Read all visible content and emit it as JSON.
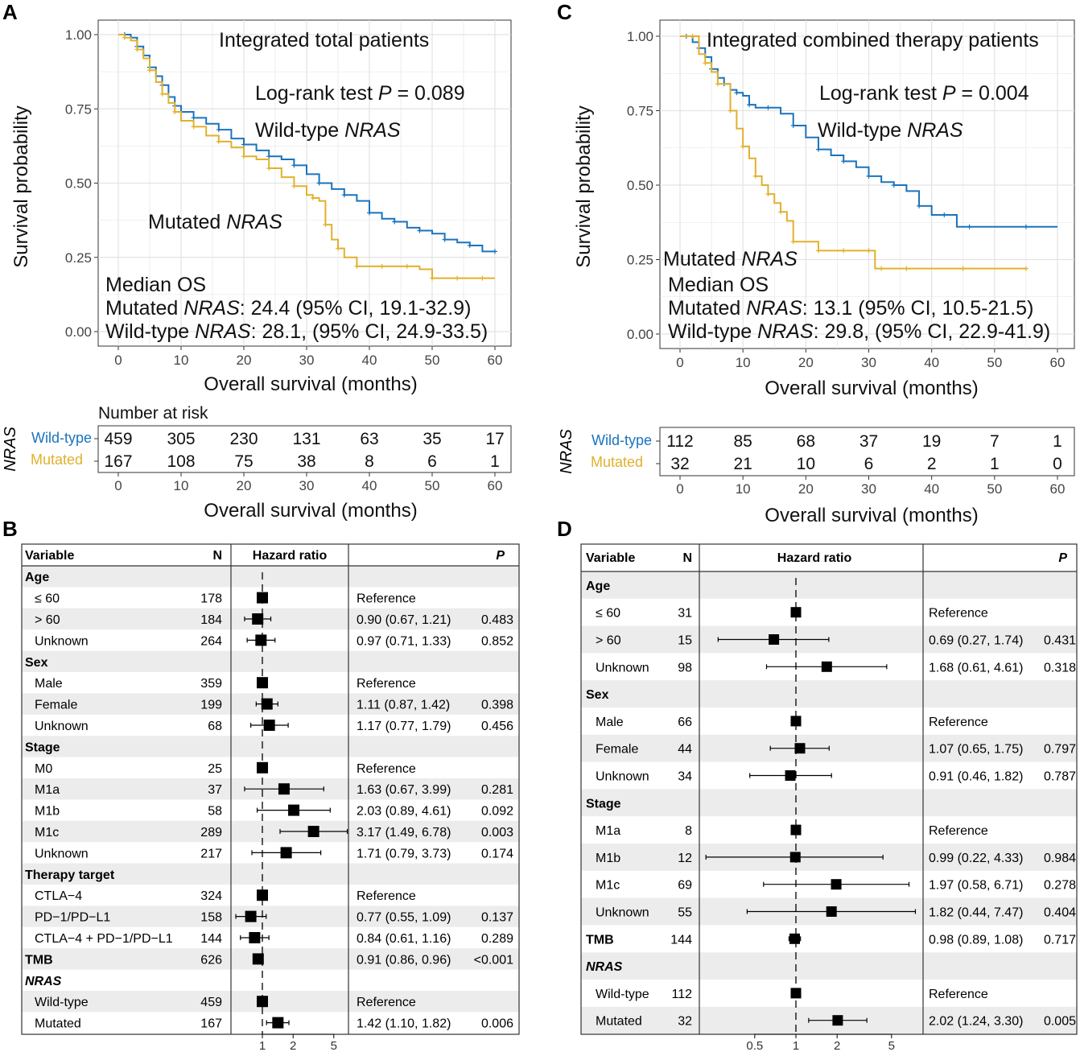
{
  "colors": {
    "wild": "#1a73bd",
    "mutated": "#e1b12c",
    "grid": "#e3e3e3",
    "band": "#ececec"
  },
  "panels": {
    "A": "A",
    "B": "B",
    "C": "C",
    "D": "D"
  },
  "A": {
    "title": "Integrated total patients",
    "logrank_prefix": "Log-rank test ",
    "logrank_p": "P",
    "logrank_value": " = 0.089",
    "wild_label_prefix": "Wild-type ",
    "gene": "NRAS",
    "mut_label_prefix": "Mutated ",
    "median_title": "Median OS",
    "median_mut_suffix": ": 24.4 (95% CI, 19.1-32.9)",
    "median_wild_suffix": ": 28.1, (95% CI, 24.9-33.5)",
    "ylabel": "Survival probability",
    "xlabel": "Overall survival (months)",
    "risk_title": "Number at risk",
    "risk_side": "NRAS",
    "risk_wild_label": "Wild-type",
    "risk_mut_label": "Mutated",
    "risk_wild": [
      "459",
      "305",
      "230",
      "131",
      "63",
      "35",
      "17"
    ],
    "risk_mut": [
      "167",
      "108",
      "75",
      "38",
      "8",
      "6",
      "1"
    ],
    "xticks": [
      "0",
      "10",
      "20",
      "30",
      "40",
      "50",
      "60"
    ],
    "yticks": [
      "0.00",
      "0.25",
      "0.50",
      "0.75",
      "1.00"
    ]
  },
  "C": {
    "title": "Integrated combined therapy patients",
    "logrank_prefix": "Log-rank test ",
    "logrank_p": "P",
    "logrank_value": " = 0.004",
    "wild_label_prefix": "Wild-type ",
    "gene": "NRAS",
    "mut_label_prefix": "Mutated ",
    "median_title": "Median OS",
    "median_mut_suffix": ": 13.1 (95% CI, 10.5-21.5)",
    "median_wild_suffix": ": 29.8, (95% CI, 22.9-41.9)",
    "ylabel": "Survival probability",
    "xlabel": "Overall survival (months)",
    "risk_side": "NRAS",
    "risk_wild_label": "Wild-type",
    "risk_mut_label": "Mutated",
    "risk_wild": [
      "112",
      "85",
      "68",
      "37",
      "19",
      "7",
      "1"
    ],
    "risk_mut": [
      "32",
      "21",
      "10",
      "6",
      "2",
      "1",
      "0"
    ],
    "xticks": [
      "0",
      "10",
      "20",
      "30",
      "40",
      "50",
      "60"
    ],
    "yticks": [
      "0.00",
      "0.25",
      "0.50",
      "0.75",
      "1.00"
    ]
  },
  "B": {
    "headers": {
      "variable": "Variable",
      "n": "N",
      "hr": "Hazard ratio",
      "p": "P"
    },
    "xticks": [
      "1",
      "2",
      "5"
    ]
  },
  "D": {
    "headers": {
      "variable": "Variable",
      "n": "N",
      "hr": "Hazard ratio",
      "p": "P"
    },
    "xticks": [
      "0.5",
      "1",
      "2",
      "5"
    ]
  },
  "chart_data": [
    {
      "panel": "A",
      "type": "line",
      "title": "Integrated total patients",
      "xlabel": "Overall survival (months)",
      "ylabel": "Survival probability",
      "xlim": [
        0,
        60
      ],
      "ylim": [
        0,
        1
      ],
      "series": [
        {
          "name": "Wild-type NRAS",
          "color": "#1a73bd",
          "x": [
            0,
            1,
            2,
            3,
            4,
            5,
            6,
            7,
            8,
            9,
            10,
            12,
            14,
            16,
            18,
            20,
            22,
            24,
            26,
            28,
            30,
            32,
            34,
            36,
            38,
            40,
            42,
            44,
            46,
            48,
            50,
            52,
            54,
            56,
            58,
            60
          ],
          "y": [
            1.0,
            1.0,
            0.99,
            0.96,
            0.93,
            0.89,
            0.86,
            0.83,
            0.79,
            0.76,
            0.74,
            0.72,
            0.7,
            0.68,
            0.65,
            0.63,
            0.61,
            0.59,
            0.58,
            0.56,
            0.53,
            0.5,
            0.48,
            0.46,
            0.44,
            0.4,
            0.38,
            0.37,
            0.35,
            0.34,
            0.33,
            0.31,
            0.3,
            0.29,
            0.27,
            0.27
          ]
        },
        {
          "name": "Mutated NRAS",
          "color": "#e1b12c",
          "x": [
            0,
            1,
            2,
            3,
            4,
            5,
            6,
            7,
            8,
            9,
            10,
            12,
            14,
            16,
            18,
            20,
            22,
            24,
            26,
            28,
            30,
            31,
            32,
            33,
            34,
            35,
            36,
            38,
            40,
            42,
            44,
            46,
            48,
            50,
            52,
            54,
            56,
            58,
            60
          ],
          "y": [
            1.0,
            0.99,
            0.98,
            0.95,
            0.92,
            0.88,
            0.84,
            0.8,
            0.77,
            0.74,
            0.71,
            0.69,
            0.66,
            0.64,
            0.62,
            0.59,
            0.58,
            0.55,
            0.52,
            0.49,
            0.46,
            0.45,
            0.44,
            0.36,
            0.31,
            0.28,
            0.25,
            0.22,
            0.22,
            0.22,
            0.22,
            0.22,
            0.21,
            0.18,
            0.18,
            0.18,
            0.18,
            0.18,
            0.18
          ]
        }
      ]
    },
    {
      "panel": "C",
      "type": "line",
      "title": "Integrated combined therapy patients",
      "xlabel": "Overall survival (months)",
      "ylabel": "Survival probability",
      "xlim": [
        0,
        60
      ],
      "ylim": [
        0,
        1
      ],
      "series": [
        {
          "name": "Wild-type NRAS",
          "color": "#1a73bd",
          "x": [
            0,
            1,
            2,
            3,
            4,
            5,
            6,
            7,
            8,
            9,
            10,
            11,
            12,
            14,
            16,
            18,
            20,
            22,
            24,
            26,
            28,
            30,
            32,
            34,
            36,
            38,
            40,
            42,
            44,
            46,
            50,
            55,
            60
          ],
          "y": [
            1.0,
            1.0,
            0.98,
            0.96,
            0.93,
            0.89,
            0.86,
            0.84,
            0.82,
            0.81,
            0.8,
            0.77,
            0.76,
            0.76,
            0.74,
            0.7,
            0.66,
            0.62,
            0.6,
            0.58,
            0.56,
            0.53,
            0.51,
            0.5,
            0.48,
            0.43,
            0.4,
            0.4,
            0.36,
            0.36,
            0.36,
            0.36,
            0.36
          ]
        },
        {
          "name": "Mutated NRAS",
          "color": "#e1b12c",
          "x": [
            0,
            2,
            3,
            4,
            5,
            6,
            7,
            8,
            9,
            10,
            11,
            12,
            13,
            14,
            15,
            16,
            17,
            18,
            20,
            22,
            24,
            26,
            28,
            30,
            31,
            32,
            34,
            36,
            40,
            45,
            50,
            55
          ],
          "y": [
            1.0,
            1.0,
            0.94,
            0.91,
            0.88,
            0.84,
            0.84,
            0.75,
            0.69,
            0.63,
            0.59,
            0.53,
            0.5,
            0.47,
            0.44,
            0.41,
            0.38,
            0.31,
            0.31,
            0.28,
            0.28,
            0.28,
            0.28,
            0.28,
            0.22,
            0.22,
            0.22,
            0.22,
            0.22,
            0.22,
            0.22,
            0.22
          ]
        }
      ]
    },
    {
      "panel": "B",
      "type": "forest",
      "scale": "log",
      "reference": 1,
      "rows": [
        {
          "kind": "group",
          "label": "Age"
        },
        {
          "label": "≤ 60",
          "n": "178",
          "hr": 1.0,
          "lo": null,
          "hi": null,
          "text": "Reference",
          "p": ""
        },
        {
          "label": "> 60",
          "n": "184",
          "hr": 0.9,
          "lo": 0.67,
          "hi": 1.21,
          "text": "0.90 (0.67, 1.21)",
          "p": "0.483"
        },
        {
          "label": "Unknown",
          "n": "264",
          "hr": 0.97,
          "lo": 0.71,
          "hi": 1.33,
          "text": "0.97 (0.71, 1.33)",
          "p": "0.852"
        },
        {
          "kind": "group",
          "label": "Sex"
        },
        {
          "label": "Male",
          "n": "359",
          "hr": 1.0,
          "lo": null,
          "hi": null,
          "text": "Reference",
          "p": ""
        },
        {
          "label": "Female",
          "n": "199",
          "hr": 1.11,
          "lo": 0.87,
          "hi": 1.42,
          "text": "1.11 (0.87, 1.42)",
          "p": "0.398"
        },
        {
          "label": "Unknown",
          "n": "68",
          "hr": 1.17,
          "lo": 0.77,
          "hi": 1.79,
          "text": "1.17 (0.77, 1.79)",
          "p": "0.456"
        },
        {
          "kind": "group",
          "label": "Stage"
        },
        {
          "label": "M0",
          "n": "25",
          "hr": 1.0,
          "lo": null,
          "hi": null,
          "text": "Reference",
          "p": ""
        },
        {
          "label": "M1a",
          "n": "37",
          "hr": 1.63,
          "lo": 0.67,
          "hi": 3.99,
          "text": "1.63 (0.67, 3.99)",
          "p": "0.281"
        },
        {
          "label": "M1b",
          "n": "58",
          "hr": 2.03,
          "lo": 0.89,
          "hi": 4.61,
          "text": "2.03 (0.89, 4.61)",
          "p": "0.092"
        },
        {
          "label": "M1c",
          "n": "289",
          "hr": 3.17,
          "lo": 1.49,
          "hi": 6.78,
          "text": "3.17 (1.49, 6.78)",
          "p": "0.003"
        },
        {
          "label": "Unknown",
          "n": "217",
          "hr": 1.71,
          "lo": 0.79,
          "hi": 3.73,
          "text": "1.71 (0.79, 3.73)",
          "p": "0.174"
        },
        {
          "kind": "group",
          "label": "Therapy target"
        },
        {
          "label": "CTLA−4",
          "n": "324",
          "hr": 1.0,
          "lo": null,
          "hi": null,
          "text": "Reference",
          "p": ""
        },
        {
          "label": "PD−1/PD−L1",
          "n": "158",
          "hr": 0.77,
          "lo": 0.55,
          "hi": 1.09,
          "text": "0.77 (0.55, 1.09)",
          "p": "0.137"
        },
        {
          "label": "CTLA−4 + PD−1/PD−L1",
          "n": "144",
          "hr": 0.84,
          "lo": 0.61,
          "hi": 1.16,
          "text": "0.84 (0.61, 1.16)",
          "p": "0.289"
        },
        {
          "kind": "group",
          "label": "TMB",
          "n": "626",
          "hr": 0.91,
          "lo": 0.86,
          "hi": 0.96,
          "text": "0.91 (0.86, 0.96)",
          "p": "<0.001"
        },
        {
          "kind": "group",
          "label": "NRAS",
          "italic": true
        },
        {
          "label": "Wild-type",
          "n": "459",
          "hr": 1.0,
          "lo": null,
          "hi": null,
          "text": "Reference",
          "p": ""
        },
        {
          "label": "Mutated",
          "n": "167",
          "hr": 1.42,
          "lo": 1.1,
          "hi": 1.82,
          "text": "1.42 (1.10, 1.82)",
          "p": "0.006"
        }
      ]
    },
    {
      "panel": "D",
      "type": "forest",
      "scale": "log",
      "reference": 1,
      "rows": [
        {
          "kind": "group",
          "label": "Age"
        },
        {
          "label": "≤ 60",
          "n": "31",
          "hr": 1.0,
          "lo": null,
          "hi": null,
          "text": "Reference",
          "p": ""
        },
        {
          "label": "> 60",
          "n": "15",
          "hr": 0.69,
          "lo": 0.27,
          "hi": 1.74,
          "text": "0.69 (0.27, 1.74)",
          "p": "0.431"
        },
        {
          "label": "Unknown",
          "n": "98",
          "hr": 1.68,
          "lo": 0.61,
          "hi": 4.61,
          "text": "1.68 (0.61, 4.61)",
          "p": "0.318"
        },
        {
          "kind": "group",
          "label": "Sex"
        },
        {
          "label": "Male",
          "n": "66",
          "hr": 1.0,
          "lo": null,
          "hi": null,
          "text": "Reference",
          "p": ""
        },
        {
          "label": "Female",
          "n": "44",
          "hr": 1.07,
          "lo": 0.65,
          "hi": 1.75,
          "text": "1.07 (0.65, 1.75)",
          "p": "0.797"
        },
        {
          "label": "Unknown",
          "n": "34",
          "hr": 0.91,
          "lo": 0.46,
          "hi": 1.82,
          "text": "0.91 (0.46, 1.82)",
          "p": "0.787"
        },
        {
          "kind": "group",
          "label": "Stage"
        },
        {
          "label": "M1a",
          "n": "8",
          "hr": 1.0,
          "lo": null,
          "hi": null,
          "text": "Reference",
          "p": ""
        },
        {
          "label": "M1b",
          "n": "12",
          "hr": 0.99,
          "lo": 0.22,
          "hi": 4.33,
          "text": "0.99 (0.22, 4.33)",
          "p": "0.984"
        },
        {
          "label": "M1c",
          "n": "69",
          "hr": 1.97,
          "lo": 0.58,
          "hi": 6.71,
          "text": "1.97 (0.58, 6.71)",
          "p": "0.278"
        },
        {
          "label": "Unknown",
          "n": "55",
          "hr": 1.82,
          "lo": 0.44,
          "hi": 7.47,
          "text": "1.82 (0.44, 7.47)",
          "p": "0.404"
        },
        {
          "kind": "group",
          "label": "TMB",
          "n": "144",
          "hr": 0.98,
          "lo": 0.89,
          "hi": 1.08,
          "text": "0.98 (0.89, 1.08)",
          "p": "0.717"
        },
        {
          "kind": "group",
          "label": "NRAS",
          "italic": true
        },
        {
          "label": "Wild-type",
          "n": "112",
          "hr": 1.0,
          "lo": null,
          "hi": null,
          "text": "Reference",
          "p": ""
        },
        {
          "label": "Mutated",
          "n": "32",
          "hr": 2.02,
          "lo": 1.24,
          "hi": 3.3,
          "text": "2.02 (1.24, 3.30)",
          "p": "0.005"
        }
      ]
    }
  ]
}
